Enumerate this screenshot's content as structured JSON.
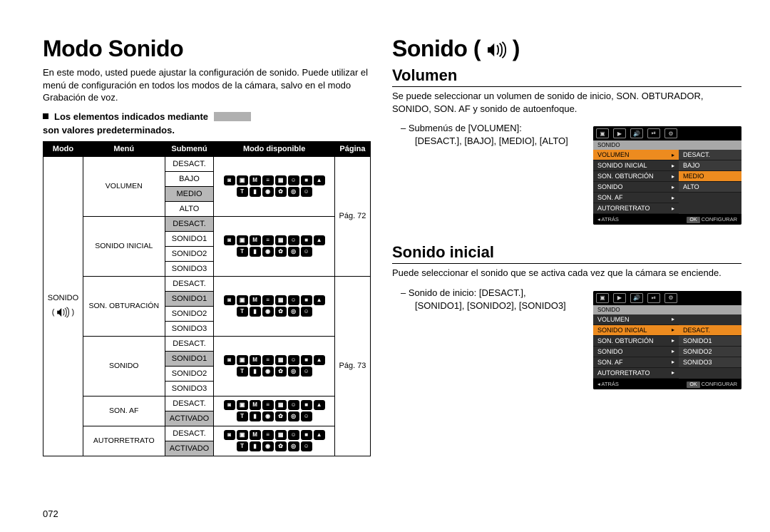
{
  "page_number": "072",
  "left": {
    "title": "Modo Sonido",
    "intro": "En este modo, usted puede ajustar la configuración de sonido. Puede utilizar el menú de configuración en todos los modos de la cámara, salvo en el modo Grabación de voz.",
    "note_before": "Los elementos indicados mediante",
    "note_after": "son valores predeterminados.",
    "table": {
      "headers": [
        "Modo",
        "Menú",
        "Submenú",
        "Modo disponible",
        "Página"
      ],
      "modo_label": "SONIDO",
      "pages": {
        "page1": "Pág. 72",
        "page2": "Pág. 73"
      },
      "groups": [
        {
          "menu": "VOLUMEN",
          "rows": [
            {
              "sub": "DESACT.",
              "default": false
            },
            {
              "sub": "BAJO",
              "default": false
            },
            {
              "sub": "MEDIO",
              "default": true
            },
            {
              "sub": "ALTO",
              "default": false
            }
          ]
        },
        {
          "menu": "SONIDO INICIAL",
          "rows": [
            {
              "sub": "DESACT.",
              "default": true
            },
            {
              "sub": "SONIDO1",
              "default": false
            },
            {
              "sub": "SONIDO2",
              "default": false
            },
            {
              "sub": "SONIDO3",
              "default": false
            }
          ]
        },
        {
          "menu": "SON. OBTURACIÓN",
          "rows": [
            {
              "sub": "DESACT.",
              "default": false
            },
            {
              "sub": "SONIDO1",
              "default": true
            },
            {
              "sub": "SONIDO2",
              "default": false
            },
            {
              "sub": "SONIDO3",
              "default": false
            }
          ]
        },
        {
          "menu": "SONIDO",
          "rows": [
            {
              "sub": "DESACT.",
              "default": false
            },
            {
              "sub": "SONIDO1",
              "default": true
            },
            {
              "sub": "SONIDO2",
              "default": false
            },
            {
              "sub": "SONIDO3",
              "default": false
            }
          ]
        },
        {
          "menu": "SON. AF",
          "rows": [
            {
              "sub": "DESACT.",
              "default": false
            },
            {
              "sub": "ACTIVADO",
              "default": true
            }
          ]
        },
        {
          "menu": "AUTORRETRATO",
          "rows": [
            {
              "sub": "DESACT.",
              "default": false
            },
            {
              "sub": "ACTIVADO",
              "default": true
            }
          ]
        }
      ],
      "mode_glyphs": [
        "◙",
        "▣",
        "M",
        "≡",
        "▦",
        "☺",
        "■",
        "▲",
        "T",
        "▮",
        "◉",
        "✿",
        "◎",
        "☺"
      ]
    }
  },
  "right": {
    "title": "Sonido",
    "sec1": {
      "heading": "Volumen",
      "desc": "Se puede seleccionar un volumen de sonido de inicio, SON. OBTURADOR, SONIDO, SON. AF y sonido de autoenfoque.",
      "sub_label": "Submenús de [VOLUMEN]:",
      "sub_values": "[DESACT.], [BAJO], [MEDIO], [ALTO]"
    },
    "sec2": {
      "heading": "Sonido inicial",
      "desc": "Puede seleccionar el sonido que se activa cada vez que la cámara se enciende.",
      "sub_label": "Sonido de inicio: [DESACT.],",
      "sub_values": "[SONIDO1], [SONIDO2], [SONIDO3]"
    },
    "osd_common": {
      "section": "SONIDO",
      "items": [
        "VOLUMEN",
        "SONIDO INICIAL",
        "SON. OBTURCIÓN",
        "SONIDO",
        "SON. AF",
        "AUTORRETRATO"
      ],
      "foot_back": "ATRÁS",
      "foot_ok": "OK",
      "foot_set": "CONFIGURAR",
      "colors": {
        "bg": "#2e2e2e",
        "highlight": "#ed8b1f"
      }
    },
    "osd1": {
      "highlight_index": 0,
      "right_values": [
        "DESACT.",
        "BAJO",
        "MEDIO",
        "ALTO"
      ],
      "right_highlight_index": 2
    },
    "osd2": {
      "highlight_index": 1,
      "right_values": [
        "DESACT.",
        "SONIDO1",
        "SONIDO2",
        "SONIDO3"
      ],
      "right_highlight_index": 0
    }
  }
}
